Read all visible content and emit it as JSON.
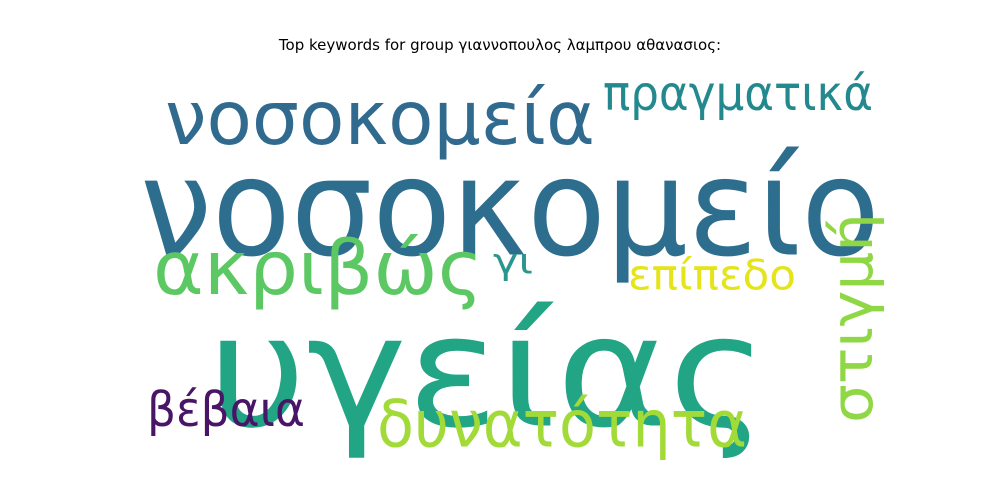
{
  "chart_data": {
    "type": "wordcloud",
    "title": "Top keywords for group γιαννοπουλος λαμπρου αθανασιος:",
    "words": [
      {
        "text": "νοσοκομείο",
        "color": "#2d6e8e",
        "weight": 1.0,
        "orientation": "horizontal"
      },
      {
        "text": "υγείας",
        "color": "#21a585",
        "weight": 0.95,
        "orientation": "horizontal"
      },
      {
        "text": "νοσοκομεία",
        "color": "#306a8e",
        "weight": 0.55,
        "orientation": "horizontal"
      },
      {
        "text": "ακριβώς",
        "color": "#5cc863",
        "weight": 0.5,
        "orientation": "horizontal"
      },
      {
        "text": "δυνατότητα",
        "color": "#a2da37",
        "weight": 0.45,
        "orientation": "horizontal"
      },
      {
        "text": "στιγμή",
        "color": "#8fd744",
        "weight": 0.4,
        "orientation": "vertical"
      },
      {
        "text": "πραγματικά",
        "color": "#23898e",
        "weight": 0.35,
        "orientation": "horizontal"
      },
      {
        "text": "βέβαια",
        "color": "#481567",
        "weight": 0.32,
        "orientation": "horizontal"
      },
      {
        "text": "επίπεδο",
        "color": "#e5e419",
        "weight": 0.28,
        "orientation": "horizontal"
      },
      {
        "text": "γι",
        "color": "#2a968c",
        "weight": 0.22,
        "orientation": "horizontal"
      }
    ]
  }
}
